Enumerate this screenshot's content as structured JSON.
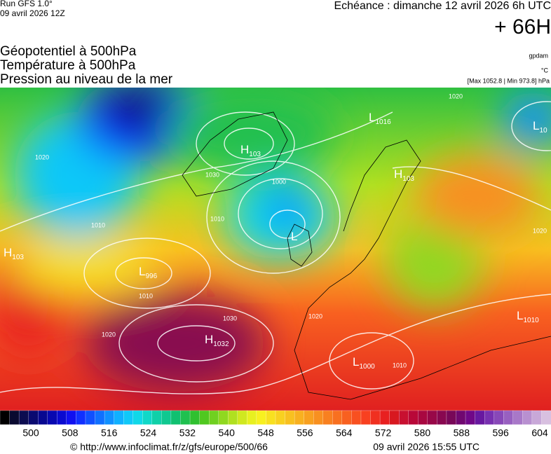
{
  "header": {
    "run": "Run GFS 1.0°",
    "date": "09 avril 2026 12Z",
    "echeance": "Echéance : dimanche 12 avril 2026 6h UTC",
    "lead": "+ 66H",
    "titles": [
      "Géopotentiel à 500hPa",
      "Température à 500hPa",
      "Pression au niveau de la mer"
    ],
    "unit1": "gpdam",
    "unit2": "°C",
    "range": "[Max 1052.8 | Min 973.8] hPa"
  },
  "map": {
    "centers": [
      {
        "letter": "H",
        "value": "1032"
      },
      {
        "letter": "L",
        "value": "996"
      },
      {
        "letter": "L",
        "value": "1016"
      },
      {
        "letter": "H",
        "value": "103"
      },
      {
        "letter": "L",
        "value": "10"
      },
      {
        "letter": "H",
        "value": "103"
      },
      {
        "letter": "L",
        "value": "1010"
      },
      {
        "letter": "L",
        "value": "1000"
      },
      {
        "letter": "H",
        "value": "103"
      },
      {
        "letter": "L",
        "value": ""
      }
    ],
    "isobar_labels": [
      "1020",
      "1010",
      "1030",
      "1020",
      "1010",
      "1000",
      "1020",
      "1030",
      "1010",
      "1020",
      "1020",
      "1010"
    ]
  },
  "colorbar": {
    "ticks": [
      500,
      508,
      516,
      524,
      532,
      540,
      548,
      556,
      564,
      572,
      580,
      588,
      596,
      604
    ],
    "colors": [
      "#000000",
      "#0a0a30",
      "#0c0c50",
      "#0a0a70",
      "#080890",
      "#0808b0",
      "#0a0ad0",
      "#1010f0",
      "#1030ff",
      "#1050ff",
      "#1070ff",
      "#1090ff",
      "#10b0ff",
      "#10c8f8",
      "#10d8e8",
      "#10d8c8",
      "#10d0a8",
      "#10c890",
      "#10c070",
      "#20c050",
      "#30c030",
      "#50c820",
      "#70d020",
      "#90d820",
      "#b0e020",
      "#d0e820",
      "#e8f020",
      "#f8f020",
      "#f8e020",
      "#f8d020",
      "#f8c020",
      "#f8b020",
      "#f8a020",
      "#f89020",
      "#f88020",
      "#f87020",
      "#f86020",
      "#f85020",
      "#f84020",
      "#f03020",
      "#e82020",
      "#d81820",
      "#c81030",
      "#b80838",
      "#a80840",
      "#980848",
      "#880850",
      "#780858",
      "#700870",
      "#700888",
      "#6818a0",
      "#7830b0",
      "#8848b8",
      "#9860c0",
      "#a878c8",
      "#b890d0",
      "#c8a8d8",
      "#d8c0e0"
    ]
  },
  "footer": {
    "url": "© http://www.infoclimat.fr/z/gfs/europe/500/66",
    "time": "09 avril 2026 15:55 UTC"
  }
}
